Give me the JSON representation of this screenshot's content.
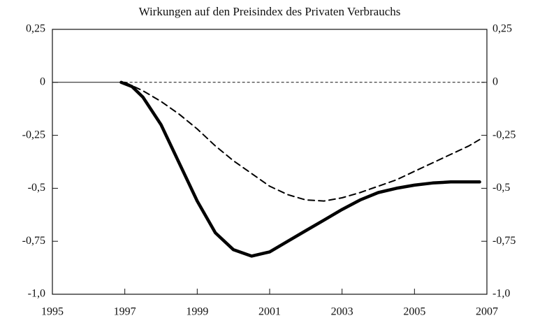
{
  "chart_data": {
    "type": "line",
    "title": "Wirkungen auf den Preisindex des Privaten Verbrauchs",
    "xlim": [
      1995,
      2007
    ],
    "xticks": [
      1995,
      1997,
      1999,
      2001,
      2003,
      2005,
      2007
    ],
    "ylim": [
      -1.0,
      0.25
    ],
    "yticks": [
      {
        "value": -1.0,
        "label": "-1,0"
      },
      {
        "value": -0.75,
        "label": "-0,75"
      },
      {
        "value": -0.5,
        "label": "-0,5"
      },
      {
        "value": -0.25,
        "label": "-0,25"
      },
      0,
      {
        "value": 0.25,
        "label": "0,25"
      }
    ],
    "series": [
      {
        "color": "#000000",
        "style": "solid",
        "x": [
          1996.9,
          1997.2,
          1997.5,
          1998,
          1998.5,
          1999,
          1999.5,
          2000,
          2000.5,
          2001,
          2001.5,
          2002,
          2002.5,
          2003,
          2003.5,
          2004,
          2004.5,
          2005,
          2005.5,
          2006,
          2006.5,
          2006.8
        ],
        "values": [
          0,
          -0.02,
          -0.07,
          -0.2,
          -0.38,
          -0.56,
          -0.71,
          -0.79,
          -0.82,
          -0.8,
          -0.75,
          -0.7,
          -0.65,
          -0.6,
          -0.555,
          -0.52,
          -0.5,
          -0.485,
          -0.475,
          -0.47,
          -0.47,
          -0.47
        ]
      },
      {
        "color": "#000000",
        "style": "dashed",
        "x": [
          1997,
          1997.5,
          1998,
          1998.5,
          1999,
          1999.5,
          2000,
          2000.5,
          2001,
          2001.5,
          2002,
          2002.5,
          2003,
          2003.5,
          2004,
          2004.5,
          2005,
          2005.5,
          2006,
          2006.5,
          2006.8
        ],
        "values": [
          0,
          -0.04,
          -0.09,
          -0.15,
          -0.22,
          -0.3,
          -0.37,
          -0.43,
          -0.49,
          -0.53,
          -0.555,
          -0.56,
          -0.545,
          -0.52,
          -0.49,
          -0.46,
          -0.42,
          -0.38,
          -0.34,
          -0.3,
          -0.27
        ]
      }
    ]
  }
}
